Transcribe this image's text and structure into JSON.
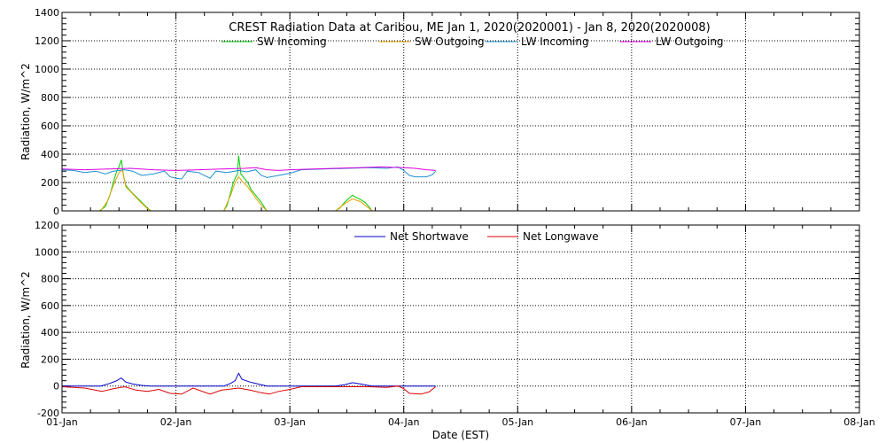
{
  "chart_data": [
    {
      "type": "line",
      "title": "CREST Radiation Data at Caribou, ME   Jan  1, 2020(2020001) - Jan  8, 2020(2020008)",
      "ylabel": "Radiation, W/m^2",
      "xlabel": "",
      "xlim": [
        0,
        7
      ],
      "ylim": [
        0,
        1400
      ],
      "y_ticks": [
        0,
        200,
        400,
        600,
        800,
        1000,
        1200,
        1400
      ],
      "x_tick_labels": [
        "01-Jan",
        "02-Jan",
        "03-Jan",
        "04-Jan",
        "05-Jan",
        "06-Jan",
        "07-Jan",
        "08-Jan"
      ],
      "grid": true,
      "legend_position": "top",
      "series": [
        {
          "name": "SW Incoming",
          "color": "#00cc00",
          "points": [
            [
              0.33,
              0
            ],
            [
              0.38,
              30
            ],
            [
              0.42,
              110
            ],
            [
              0.45,
              200
            ],
            [
              0.48,
              280
            ],
            [
              0.5,
              310
            ],
            [
              0.52,
              360
            ],
            [
              0.54,
              250
            ],
            [
              0.56,
              180
            ],
            [
              0.6,
              140
            ],
            [
              0.65,
              100
            ],
            [
              0.7,
              60
            ],
            [
              0.75,
              20
            ],
            [
              0.78,
              0
            ],
            [
              1.0,
              0
            ],
            [
              1.42,
              0
            ],
            [
              1.45,
              40
            ],
            [
              1.48,
              130
            ],
            [
              1.5,
              190
            ],
            [
              1.52,
              230
            ],
            [
              1.54,
              260
            ],
            [
              1.55,
              390
            ],
            [
              1.57,
              260
            ],
            [
              1.6,
              230
            ],
            [
              1.63,
              200
            ],
            [
              1.66,
              150
            ],
            [
              1.7,
              110
            ],
            [
              1.75,
              60
            ],
            [
              1.78,
              20
            ],
            [
              1.8,
              0
            ],
            [
              2.0,
              0
            ],
            [
              2.4,
              0
            ],
            [
              2.44,
              20
            ],
            [
              2.48,
              60
            ],
            [
              2.52,
              90
            ],
            [
              2.55,
              110
            ],
            [
              2.58,
              95
            ],
            [
              2.62,
              80
            ],
            [
              2.66,
              60
            ],
            [
              2.7,
              25
            ],
            [
              2.72,
              0
            ],
            [
              3.0,
              0
            ],
            [
              3.28,
              0
            ]
          ]
        },
        {
          "name": "SW Outgoing",
          "color": "#e8a000",
          "points": [
            [
              0.34,
              0
            ],
            [
              0.4,
              70
            ],
            [
              0.45,
              180
            ],
            [
              0.5,
              270
            ],
            [
              0.53,
              290
            ],
            [
              0.56,
              170
            ],
            [
              0.62,
              120
            ],
            [
              0.68,
              70
            ],
            [
              0.75,
              15
            ],
            [
              0.78,
              0
            ],
            [
              1.42,
              0
            ],
            [
              1.48,
              110
            ],
            [
              1.52,
              200
            ],
            [
              1.55,
              240
            ],
            [
              1.58,
              210
            ],
            [
              1.63,
              170
            ],
            [
              1.7,
              90
            ],
            [
              1.76,
              30
            ],
            [
              1.8,
              0
            ],
            [
              2.4,
              0
            ],
            [
              2.48,
              50
            ],
            [
              2.55,
              85
            ],
            [
              2.62,
              65
            ],
            [
              2.7,
              15
            ],
            [
              2.72,
              0
            ],
            [
              3.28,
              0
            ]
          ]
        },
        {
          "name": "LW Incoming",
          "color": "#1e90d0",
          "points": [
            [
              0.0,
              290
            ],
            [
              0.1,
              285
            ],
            [
              0.2,
              270
            ],
            [
              0.3,
              280
            ],
            [
              0.38,
              260
            ],
            [
              0.45,
              280
            ],
            [
              0.55,
              290
            ],
            [
              0.62,
              280
            ],
            [
              0.7,
              250
            ],
            [
              0.8,
              260
            ],
            [
              0.9,
              280
            ],
            [
              0.95,
              240
            ],
            [
              1.0,
              230
            ],
            [
              1.05,
              225
            ],
            [
              1.1,
              280
            ],
            [
              1.2,
              270
            ],
            [
              1.3,
              230
            ],
            [
              1.35,
              280
            ],
            [
              1.45,
              270
            ],
            [
              1.55,
              285
            ],
            [
              1.62,
              275
            ],
            [
              1.7,
              290
            ],
            [
              1.75,
              250
            ],
            [
              1.8,
              235
            ],
            [
              1.9,
              250
            ],
            [
              2.0,
              265
            ],
            [
              2.1,
              290
            ],
            [
              2.3,
              295
            ],
            [
              2.5,
              300
            ],
            [
              2.7,
              305
            ],
            [
              2.85,
              300
            ],
            [
              2.95,
              310
            ],
            [
              3.0,
              285
            ],
            [
              3.05,
              250
            ],
            [
              3.1,
              240
            ],
            [
              3.2,
              240
            ],
            [
              3.25,
              255
            ],
            [
              3.28,
              280
            ]
          ]
        },
        {
          "name": "LW Outgoing",
          "color": "#e000e0",
          "points": [
            [
              0.0,
              295
            ],
            [
              0.2,
              290
            ],
            [
              0.4,
              295
            ],
            [
              0.6,
              300
            ],
            [
              0.8,
              290
            ],
            [
              1.0,
              285
            ],
            [
              1.2,
              290
            ],
            [
              1.4,
              295
            ],
            [
              1.6,
              300
            ],
            [
              1.7,
              305
            ],
            [
              1.8,
              290
            ],
            [
              1.9,
              285
            ],
            [
              2.0,
              290
            ],
            [
              2.2,
              295
            ],
            [
              2.4,
              300
            ],
            [
              2.6,
              305
            ],
            [
              2.8,
              310
            ],
            [
              3.0,
              305
            ],
            [
              3.1,
              300
            ],
            [
              3.2,
              290
            ],
            [
              3.28,
              285
            ]
          ]
        }
      ]
    },
    {
      "type": "line",
      "title": "",
      "ylabel": "Radiation, W/m^2",
      "xlabel": "Date (EST)",
      "xlim": [
        0,
        7
      ],
      "ylim": [
        -200,
        1200
      ],
      "y_ticks": [
        -200,
        0,
        200,
        400,
        600,
        800,
        1000,
        1200
      ],
      "x_tick_labels": [
        "01-Jan",
        "02-Jan",
        "03-Jan",
        "04-Jan",
        "05-Jan",
        "06-Jan",
        "07-Jan",
        "08-Jan"
      ],
      "grid": true,
      "legend_position": "top",
      "series": [
        {
          "name": "Net Shortwave",
          "color": "#0000cc",
          "points": [
            [
              0.0,
              0
            ],
            [
              0.34,
              0
            ],
            [
              0.42,
              20
            ],
            [
              0.48,
              40
            ],
            [
              0.52,
              60
            ],
            [
              0.56,
              30
            ],
            [
              0.62,
              15
            ],
            [
              0.7,
              5
            ],
            [
              0.78,
              0
            ],
            [
              1.42,
              0
            ],
            [
              1.48,
              20
            ],
            [
              1.52,
              40
            ],
            [
              1.55,
              95
            ],
            [
              1.58,
              50
            ],
            [
              1.65,
              30
            ],
            [
              1.72,
              15
            ],
            [
              1.8,
              0
            ],
            [
              2.4,
              0
            ],
            [
              2.48,
              10
            ],
            [
              2.55,
              25
            ],
            [
              2.62,
              15
            ],
            [
              2.72,
              0
            ],
            [
              3.28,
              0
            ]
          ]
        },
        {
          "name": "Net Longwave",
          "color": "#dd0000",
          "points": [
            [
              0.0,
              -5
            ],
            [
              0.2,
              -15
            ],
            [
              0.35,
              -40
            ],
            [
              0.45,
              -20
            ],
            [
              0.55,
              -5
            ],
            [
              0.65,
              -30
            ],
            [
              0.75,
              -40
            ],
            [
              0.85,
              -25
            ],
            [
              0.95,
              -55
            ],
            [
              1.05,
              -60
            ],
            [
              1.15,
              -15
            ],
            [
              1.3,
              -60
            ],
            [
              1.4,
              -30
            ],
            [
              1.55,
              -15
            ],
            [
              1.65,
              -30
            ],
            [
              1.75,
              -50
            ],
            [
              1.82,
              -60
            ],
            [
              1.9,
              -40
            ],
            [
              2.0,
              -25
            ],
            [
              2.1,
              -5
            ],
            [
              2.3,
              -5
            ],
            [
              2.5,
              -5
            ],
            [
              2.7,
              -5
            ],
            [
              2.85,
              -10
            ],
            [
              2.95,
              0
            ],
            [
              3.0,
              -20
            ],
            [
              3.05,
              -55
            ],
            [
              3.15,
              -60
            ],
            [
              3.22,
              -45
            ],
            [
              3.28,
              -5
            ]
          ]
        }
      ]
    }
  ]
}
